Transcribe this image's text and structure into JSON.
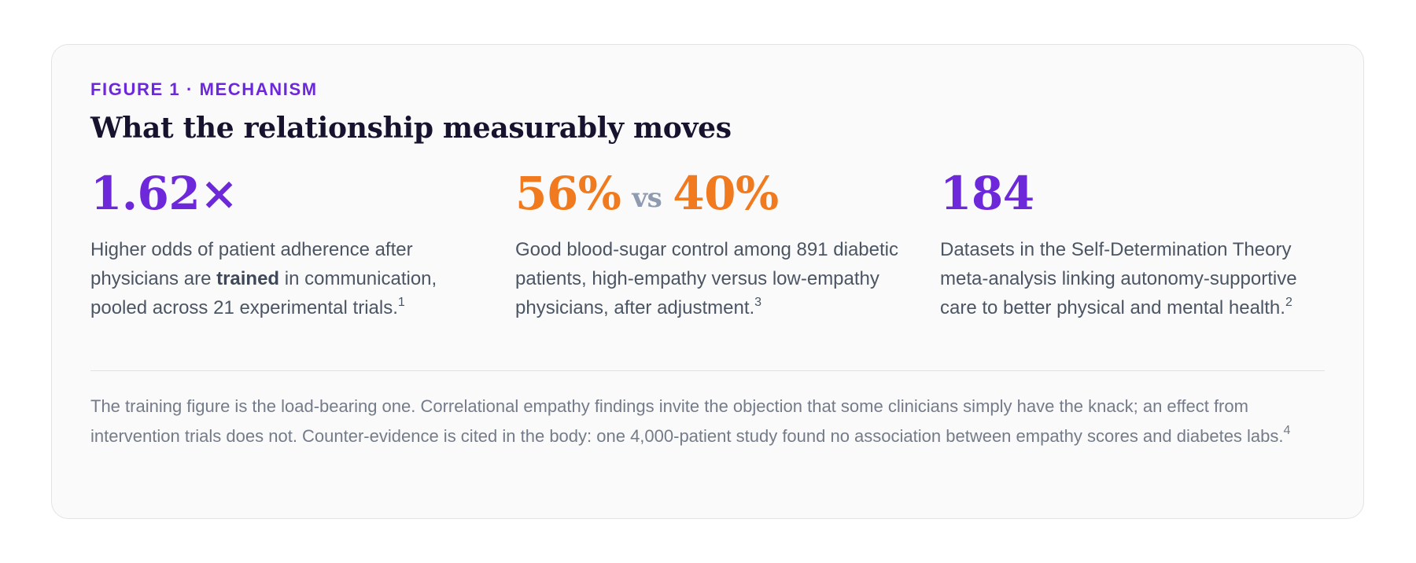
{
  "figure": {
    "eyebrow": "FIGURE 1 · MECHANISM",
    "title": "What the relationship measurably moves"
  },
  "stats": [
    {
      "value": "1.62×",
      "desc_pre": "Higher odds of patient adherence after physicians are ",
      "desc_bold": "trained",
      "desc_post": " in communication, pooled across 21 experimental trials.",
      "footnote": "1"
    },
    {
      "value_a": "56%",
      "vs": "vs",
      "value_b": "40%",
      "desc": "Good blood-sugar control among 891 diabetic patients, high-empathy versus low-empathy physicians, after adjustment.",
      "footnote": "3"
    },
    {
      "value": "184",
      "desc": "Datasets in the Self-Determination Theory meta-analysis linking autonomy-supportive care to better physical and mental health.",
      "footnote": "2"
    }
  ],
  "note": {
    "text": "The training figure is the load-bearing one. Correlational empathy findings invite the objection that some clinicians simply have the knack; an effect from intervention trials does not. Counter-evidence is cited in the body: one 4,000-patient study found no association between empathy scores and diabetes labs.",
    "footnote": "4"
  },
  "colors": {
    "accent_purple": "#6d28d9",
    "accent_orange": "#f07a1d",
    "title": "#17122e",
    "body_text": "#4b5563",
    "muted_text": "#747b89",
    "vs_text": "#8f9bb0",
    "card_bg": "#fafafa",
    "card_border": "#e3e3e6"
  }
}
